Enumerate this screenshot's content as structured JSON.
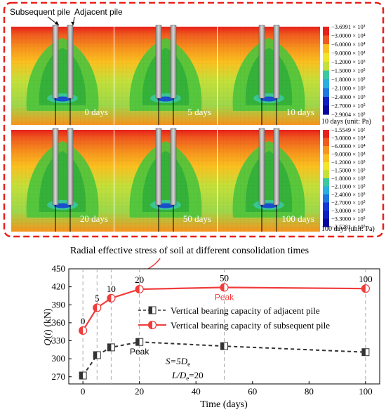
{
  "contour": {
    "pile_labels": {
      "subsequent": "Subsequent pile",
      "adjacent": "Adjacent pile"
    },
    "rows": [
      {
        "panels": [
          {
            "label": "0 days"
          },
          {
            "label": "5 days"
          },
          {
            "label": "10 days"
          }
        ],
        "scale_title": "10 days (unit: Pa)",
        "scale_ticks": [
          "−3.6991 × 10³",
          "−3.0000 × 10⁴",
          "−6.0000 × 10⁴",
          "−9.0000 × 10⁴",
          "−1.2000 × 10⁵",
          "−1.5000 × 10⁵",
          "−1.8000 × 10⁵",
          "−2.1000 × 10⁵",
          "−2.4000 × 10⁵",
          "−2.7000 × 10⁵",
          "−2.9004 × 10⁵"
        ]
      },
      {
        "panels": [
          {
            "label": "20 days"
          },
          {
            "label": "50 days"
          },
          {
            "label": "100 days"
          }
        ],
        "scale_title": "100 days (unit: Pa)",
        "scale_ticks": [
          "−1.5549 × 10²",
          "−3.0000 × 10⁴",
          "−6.0000 × 10⁴",
          "−9.0000 × 10⁴",
          "−1.2000 × 10⁵",
          "−1.5000 × 10⁵",
          "−1.8000 × 10⁵",
          "−2.1000 × 10⁵",
          "−2.4000 × 10⁵",
          "−2.7000 × 10⁵",
          "−3.0000 × 10⁵",
          "−3.3000 × 10⁵",
          "−3.5281 × 10⁵"
        ]
      }
    ],
    "scale_colors": [
      "#e8201a",
      "#f05a1e",
      "#f7941d",
      "#fbc020",
      "#f2e52a",
      "#c4e03a",
      "#6cc84a",
      "#3cc8a0",
      "#2ab0e0",
      "#1f78e0",
      "#1438d8",
      "#1020c0",
      "#0808a0"
    ],
    "caption": "Radial effective stress of soil at different consolidation times"
  },
  "chart_data": {
    "type": "line",
    "xlabel": "Time (days)",
    "ylabel": "Q(t) (kN)",
    "xlim": [
      -5,
      105
    ],
    "ylim": [
      258,
      450
    ],
    "xticks": [
      0,
      20,
      40,
      60,
      80,
      100
    ],
    "yticks": [
      270,
      300,
      330,
      360,
      390,
      420,
      450
    ],
    "vlines": [
      0,
      5,
      10,
      20,
      50,
      100
    ],
    "series": [
      {
        "name": "Vertical bearing capacity of adjacent pile",
        "color": "#333333",
        "dashed": true,
        "x": [
          0,
          5,
          10,
          20,
          50,
          100
        ],
        "y": [
          272,
          306,
          319,
          328,
          321,
          311
        ]
      },
      {
        "name": "Vertical bearing capacity of subsequent pile",
        "color": "#f03c3c",
        "dashed": false,
        "x": [
          0,
          5,
          10,
          20,
          50,
          100
        ],
        "y": [
          347,
          385,
          401,
          416,
          419,
          417
        ]
      }
    ],
    "point_labels": [
      {
        "text": "0",
        "x": 0,
        "y": 347
      },
      {
        "text": "5",
        "x": 5,
        "y": 385
      },
      {
        "text": "10",
        "x": 10,
        "y": 401
      },
      {
        "text": "20",
        "x": 20,
        "y": 416
      },
      {
        "text": "50",
        "x": 50,
        "y": 419
      },
      {
        "text": "100",
        "x": 100,
        "y": 417
      }
    ],
    "peak_labels": [
      {
        "text": "Peak",
        "x": 50,
        "y": 419,
        "color": "#f03c3c"
      },
      {
        "text": "Peak",
        "x": 20,
        "y": 328,
        "color": "#000000"
      }
    ],
    "annotation": [
      "S=5D",
      "e",
      "L/D",
      "e",
      "=20"
    ],
    "legend_position": "upper-right"
  }
}
